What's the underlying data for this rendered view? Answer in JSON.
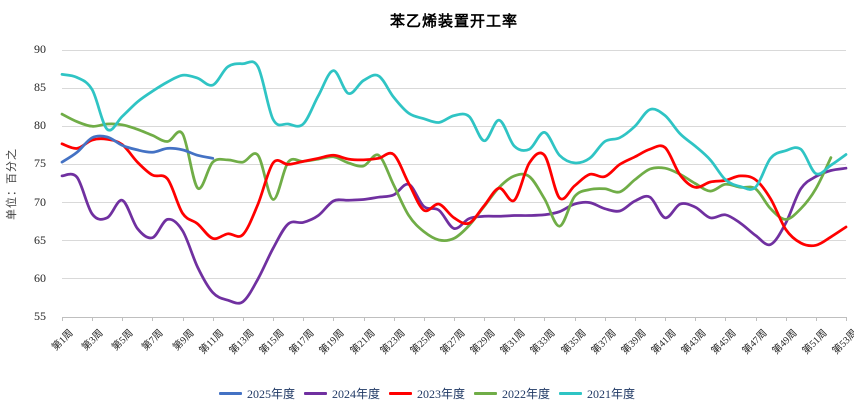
{
  "title": "苯乙烯装置开工率",
  "y_axis_title": "单位：百分之",
  "chart_data": {
    "type": "line",
    "smoothed": true,
    "grid": "horizontal",
    "legend_position": "bottom",
    "x_range": [
      1,
      53
    ],
    "ylim": [
      55,
      90
    ],
    "y_ticks": [
      90,
      85,
      80,
      75,
      70,
      65,
      60,
      55
    ],
    "x_tick_weeks": [
      1,
      3,
      5,
      7,
      9,
      11,
      13,
      15,
      17,
      19,
      21,
      23,
      25,
      27,
      29,
      31,
      33,
      35,
      37,
      39,
      41,
      43,
      45,
      47,
      49,
      51,
      53
    ],
    "x_tick_labels": [
      "第1周",
      "第3周",
      "第5周",
      "第7周",
      "第9周",
      "第11周",
      "第13周",
      "第15周",
      "第17周",
      "第19周",
      "第21周",
      "第23周",
      "第25周",
      "第27周",
      "第29周",
      "第31周",
      "第33周",
      "第35周",
      "第37周",
      "第39周",
      "第41周",
      "第43周",
      "第45周",
      "第47周",
      "第49周",
      "第51周",
      "第53周"
    ],
    "series": [
      {
        "name": "2025年度",
        "color": "#4472C4",
        "start_week": 1,
        "values": [
          75.3,
          76.6,
          78.5,
          78.6,
          77.5,
          76.9,
          76.6,
          77.1,
          76.9,
          76.2,
          75.8
        ]
      },
      {
        "name": "2024年度",
        "color": "#7030A0",
        "start_week": 1,
        "values": [
          73.5,
          73.3,
          68.5,
          68.0,
          70.3,
          66.6,
          65.4,
          67.8,
          66.3,
          61.5,
          58.2,
          57.2,
          57.0,
          60.0,
          64.0,
          67.2,
          67.4,
          68.3,
          70.2,
          70.3,
          70.4,
          70.7,
          71.0,
          72.4,
          69.5,
          69.0,
          66.6,
          67.9,
          68.2,
          68.2,
          68.3,
          68.3,
          68.4,
          68.8,
          69.8,
          70.0,
          69.2,
          68.9,
          70.2,
          70.7,
          68.0,
          69.8,
          69.4,
          68.0,
          68.4,
          67.3,
          65.7,
          64.5,
          67.3,
          71.8,
          73.4,
          74.2,
          74.5
        ]
      },
      {
        "name": "2023年度",
        "color": "#FF0000",
        "start_week": 1,
        "values": [
          77.7,
          77.1,
          78.2,
          78.3,
          77.6,
          75.3,
          73.6,
          73.1,
          68.6,
          67.2,
          65.3,
          65.9,
          65.8,
          69.8,
          75.2,
          75.0,
          75.4,
          75.8,
          76.2,
          75.7,
          75.6,
          75.8,
          76.3,
          72.5,
          69.0,
          69.8,
          68.0,
          67.3,
          69.6,
          71.9,
          70.3,
          75.2,
          76.2,
          70.6,
          72.2,
          73.7,
          73.4,
          75.0,
          76.0,
          77.0,
          77.2,
          73.6,
          72.0,
          72.7,
          72.9,
          73.5,
          73.0,
          70.5,
          66.5,
          64.7,
          64.4,
          65.5,
          66.8
        ]
      },
      {
        "name": "2022年度",
        "color": "#70AD47",
        "start_week": 1,
        "values": [
          81.6,
          80.6,
          80.0,
          80.3,
          80.2,
          79.6,
          78.8,
          78.0,
          79.0,
          71.9,
          75.3,
          75.6,
          75.3,
          76.2,
          70.4,
          75.3,
          75.4,
          75.7,
          76.0,
          75.2,
          74.8,
          76.2,
          72.3,
          68.3,
          66.2,
          65.1,
          65.3,
          67.0,
          69.5,
          72.0,
          73.5,
          73.4,
          70.5,
          66.9,
          70.8,
          71.7,
          71.8,
          71.4,
          73.0,
          74.4,
          74.5,
          73.7,
          72.5,
          71.5,
          72.4,
          72.0,
          71.8,
          69.2,
          67.8,
          69.2,
          71.8,
          75.9
        ]
      },
      {
        "name": "2021年度",
        "color": "#2FC4C4",
        "start_week": 1,
        "values": [
          86.8,
          86.4,
          84.8,
          79.6,
          81.3,
          83.2,
          84.6,
          85.8,
          86.7,
          86.3,
          85.4,
          87.8,
          88.2,
          87.8,
          80.9,
          80.3,
          80.3,
          84.0,
          87.3,
          84.3,
          86.0,
          86.6,
          83.8,
          81.7,
          81.0,
          80.5,
          81.4,
          81.3,
          78.1,
          80.8,
          77.4,
          77.0,
          79.2,
          76.2,
          75.2,
          75.8,
          78.0,
          78.5,
          80.0,
          82.2,
          81.4,
          79.0,
          77.4,
          75.6,
          73.0,
          72.1,
          72.0,
          75.8,
          76.8,
          77.0,
          73.8,
          74.9,
          76.3
        ]
      }
    ]
  }
}
